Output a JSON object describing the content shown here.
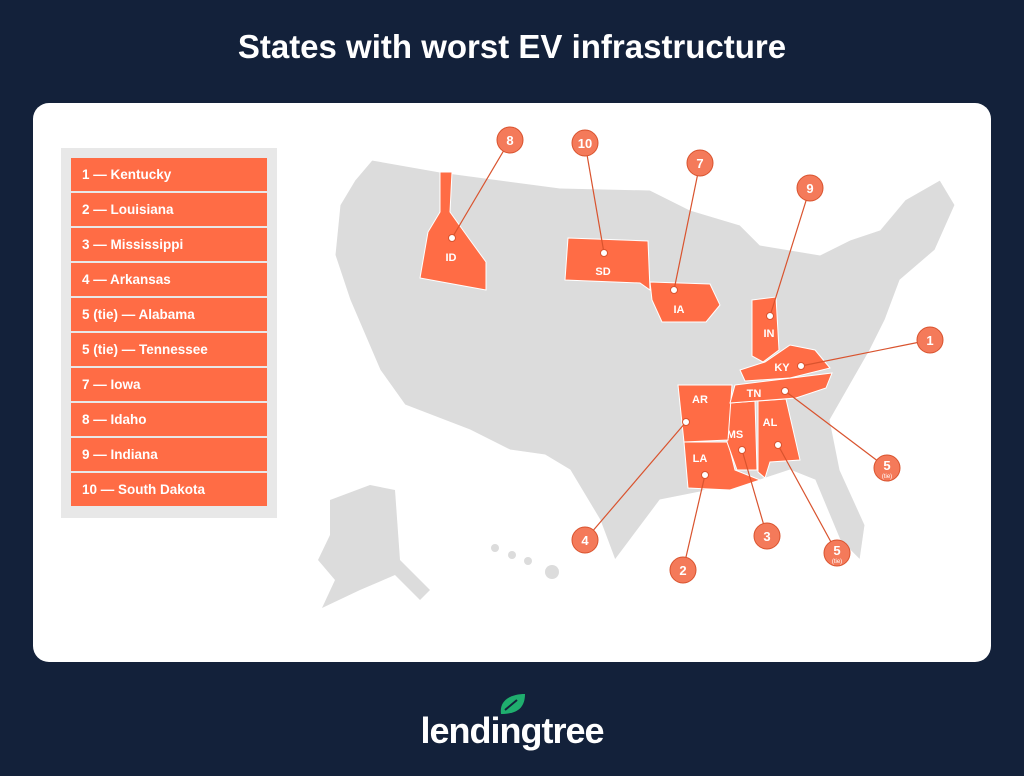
{
  "title": "States with worst EV infrastructure",
  "legend": [
    "1 — Kentucky",
    "2 — Louisiana",
    "3 — Mississippi",
    "4 — Arkansas",
    "5 (tie) — Alabama",
    "5 (tie) — Tennessee",
    "7 — Iowa",
    "8 — Idaho",
    "9 — Indiana",
    "10 — South Dakota"
  ],
  "states": [
    {
      "abbr": "KY",
      "rank": "1",
      "tie": ""
    },
    {
      "abbr": "LA",
      "rank": "2",
      "tie": ""
    },
    {
      "abbr": "MS",
      "rank": "3",
      "tie": ""
    },
    {
      "abbr": "AR",
      "rank": "4",
      "tie": ""
    },
    {
      "abbr": "AL",
      "rank": "5",
      "tie": "(tie)"
    },
    {
      "abbr": "TN",
      "rank": "5",
      "tie": "(tie)"
    },
    {
      "abbr": "IA",
      "rank": "7",
      "tie": ""
    },
    {
      "abbr": "ID",
      "rank": "8",
      "tie": ""
    },
    {
      "abbr": "IN",
      "rank": "9",
      "tie": ""
    },
    {
      "abbr": "SD",
      "rank": "10",
      "tie": ""
    }
  ],
  "colors": {
    "highlight": "#ff6c45",
    "map": "#dcdcdc",
    "background": "#13213a",
    "brand_leaf": "#1fae6e"
  },
  "logo": "lendingtree"
}
